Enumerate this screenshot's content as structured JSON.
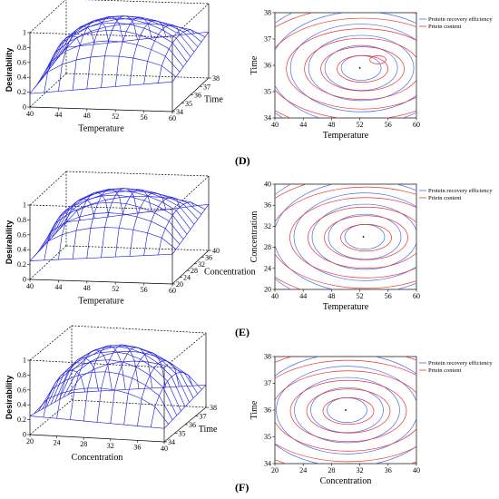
{
  "panel_labels": [
    "(D)",
    "(E)",
    "(F)"
  ],
  "colors": {
    "surface": "#2020e0",
    "efficiency": "#4a6cf0",
    "content": "#ee3030",
    "box": "#000000"
  },
  "chart_data": [
    {
      "type": "surface",
      "panel": "D",
      "zlabel": "Desirability",
      "xlabel": "Temperature",
      "ylabel": "Time",
      "x_ticks": [
        "40",
        "44",
        "48",
        "52",
        "56",
        "60"
      ],
      "y_ticks": [
        "34",
        "35",
        "36",
        "37",
        "38"
      ],
      "z_ticks": [
        "0",
        "0.2",
        "0.4",
        "0.6",
        "0.8",
        "1"
      ],
      "xlim": [
        40,
        60
      ],
      "ylim": [
        34,
        38
      ],
      "zlim": [
        0,
        1
      ]
    },
    {
      "type": "contour",
      "panel": "D",
      "xlabel": "Temperature",
      "ylabel": "Time",
      "x_ticks": [
        "40",
        "44",
        "48",
        "52",
        "56",
        "60"
      ],
      "y_ticks": [
        "34",
        "35",
        "36",
        "37",
        "38"
      ],
      "xlim": [
        40,
        60
      ],
      "ylim": [
        34,
        38
      ],
      "legend": [
        "Protein recovery efficiency",
        "Prtein content"
      ],
      "optimum": [
        52,
        35.9
      ]
    },
    {
      "type": "surface",
      "panel": "E",
      "zlabel": "Desirability",
      "xlabel": "Temperature",
      "ylabel": "Concentration",
      "x_ticks": [
        "40",
        "44",
        "48",
        "52",
        "56",
        "60"
      ],
      "y_ticks": [
        "20",
        "24",
        "28",
        "32",
        "36",
        "40"
      ],
      "z_ticks": [
        "0",
        "0.2",
        "0.4",
        "0.6",
        "0.8",
        "1"
      ],
      "xlim": [
        40,
        60
      ],
      "ylim": [
        20,
        40
      ],
      "zlim": [
        0,
        1
      ]
    },
    {
      "type": "contour",
      "panel": "E",
      "xlabel": "Temperature",
      "ylabel": "Concentration",
      "x_ticks": [
        "40",
        "44",
        "48",
        "52",
        "56",
        "60"
      ],
      "y_ticks": [
        "20",
        "24",
        "28",
        "32",
        "36",
        "40"
      ],
      "xlim": [
        40,
        60
      ],
      "ylim": [
        20,
        40
      ],
      "legend": [
        "Protein recovery efficiency",
        "Prtein content"
      ],
      "optimum": [
        52.5,
        30
      ]
    },
    {
      "type": "surface",
      "panel": "F",
      "zlabel": "Desirability",
      "xlabel": "Concentration",
      "ylabel": "Time",
      "x_ticks": [
        "20",
        "24",
        "28",
        "32",
        "36",
        "40"
      ],
      "y_ticks": [
        "34",
        "35",
        "36",
        "37",
        "38"
      ],
      "z_ticks": [
        "0",
        "0.2",
        "0.4",
        "0.6",
        "0.8",
        "1"
      ],
      "xlim": [
        20,
        40
      ],
      "ylim": [
        34,
        38
      ],
      "zlim": [
        0,
        1
      ]
    },
    {
      "type": "contour",
      "panel": "F",
      "xlabel": "Concentration",
      "ylabel": "Time",
      "x_ticks": [
        "20",
        "24",
        "28",
        "32",
        "36",
        "40"
      ],
      "y_ticks": [
        "34",
        "35",
        "36",
        "37",
        "38"
      ],
      "xlim": [
        20,
        40
      ],
      "ylim": [
        34,
        38
      ],
      "legend": [
        "Protein recovery efficiency",
        "Prtein content"
      ],
      "optimum": [
        30,
        36
      ]
    }
  ]
}
